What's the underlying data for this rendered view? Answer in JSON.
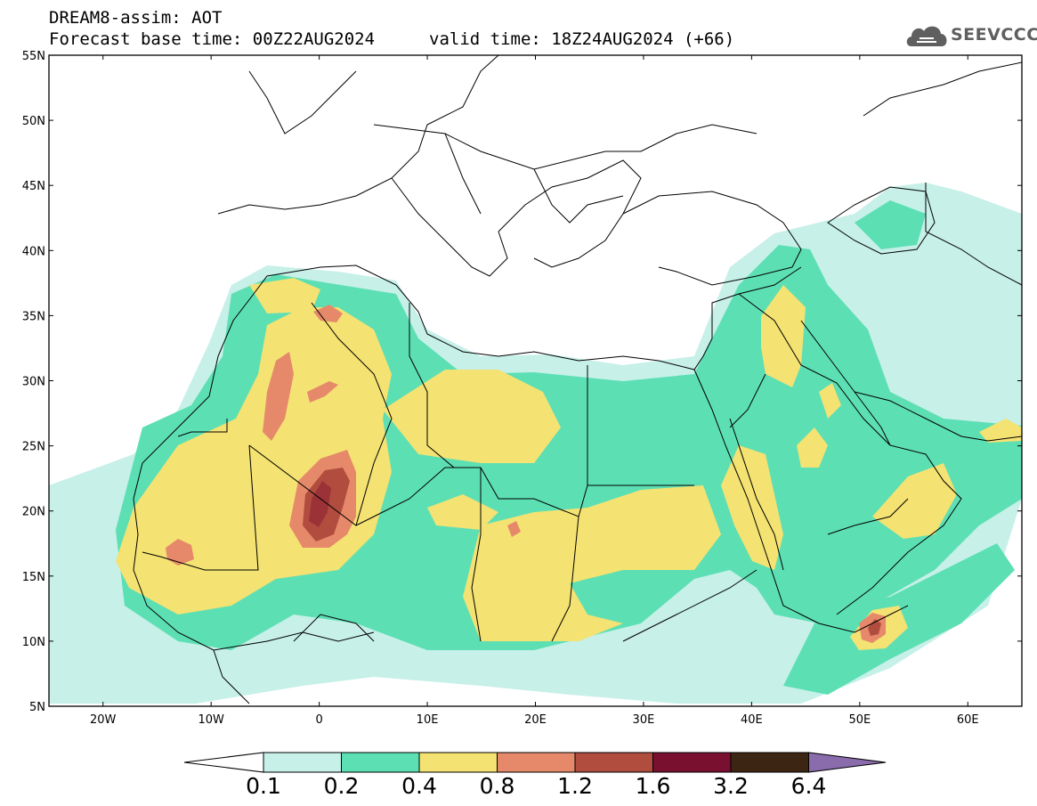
{
  "header": {
    "title": "DREAM8-assim: AOT",
    "base_time": "Forecast base time: 00Z22AUG2024",
    "valid_time": "valid time: 18Z24AUG2024 (+66)"
  },
  "logo": {
    "text": "SEEVCCC",
    "icon": "cloud-icon"
  },
  "map": {
    "lon_ticks": [
      "20W",
      "10W",
      "0",
      "10E",
      "20E",
      "30E",
      "40E",
      "50E",
      "60E"
    ],
    "lat_ticks": [
      "55N",
      "50N",
      "45N",
      "40N",
      "35N",
      "30N",
      "25N",
      "20N",
      "15N",
      "10N",
      "5N"
    ],
    "lon_range": [
      -25,
      65
    ],
    "lat_range": [
      5,
      55
    ]
  },
  "colorbar": {
    "labels": [
      "0.1",
      "0.2",
      "0.4",
      "0.8",
      "1.2",
      "1.6",
      "3.2",
      "6.4"
    ],
    "colors": [
      "#c6f0e8",
      "#5ddfb4",
      "#f4e272",
      "#e5896a",
      "#b04d3e",
      "#7a1030",
      "#3d2514",
      "#8a6bac"
    ]
  }
}
